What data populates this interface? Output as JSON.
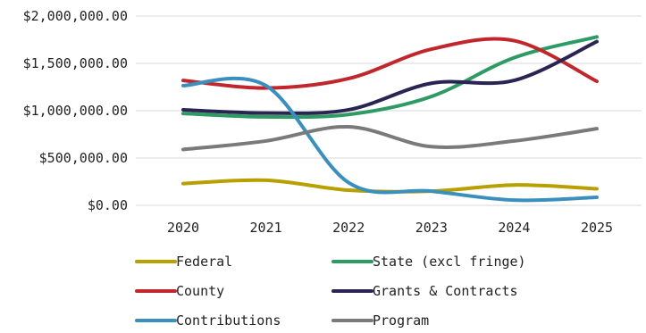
{
  "chart_data": {
    "type": "line",
    "smooth": true,
    "title": "",
    "xlabel": "",
    "ylabel": "",
    "categories": [
      "2020",
      "2021",
      "2022",
      "2023",
      "2024",
      "2025"
    ],
    "ylim": [
      0,
      2000000
    ],
    "yticks": [
      0,
      500000,
      1000000,
      1500000,
      2000000
    ],
    "ytick_labels": [
      "$0.00",
      "$500,000.00",
      "$1,000,000.00",
      "$1,500,000.00",
      "$2,000,000.00"
    ],
    "grid": true,
    "legend_position": "bottom",
    "series": [
      {
        "name": "Federal",
        "color": "#b8a000",
        "values": [
          230000,
          265000,
          160000,
          150000,
          215000,
          175000
        ]
      },
      {
        "name": "State (excl fringe)",
        "color": "#2e9a64",
        "values": [
          970000,
          935000,
          960000,
          1150000,
          1560000,
          1780000
        ]
      },
      {
        "name": "County",
        "color": "#c0272d",
        "values": [
          1320000,
          1240000,
          1340000,
          1650000,
          1740000,
          1310000
        ]
      },
      {
        "name": "Grants & Contracts",
        "color": "#2a2452",
        "values": [
          1010000,
          975000,
          1010000,
          1290000,
          1320000,
          1730000
        ]
      },
      {
        "name": "Contributions",
        "color": "#3a8fbd",
        "values": [
          1265000,
          1265000,
          240000,
          150000,
          55000,
          85000
        ]
      },
      {
        "name": "Program",
        "color": "#7a7a7a",
        "values": [
          590000,
          680000,
          830000,
          620000,
          680000,
          810000
        ]
      }
    ]
  }
}
